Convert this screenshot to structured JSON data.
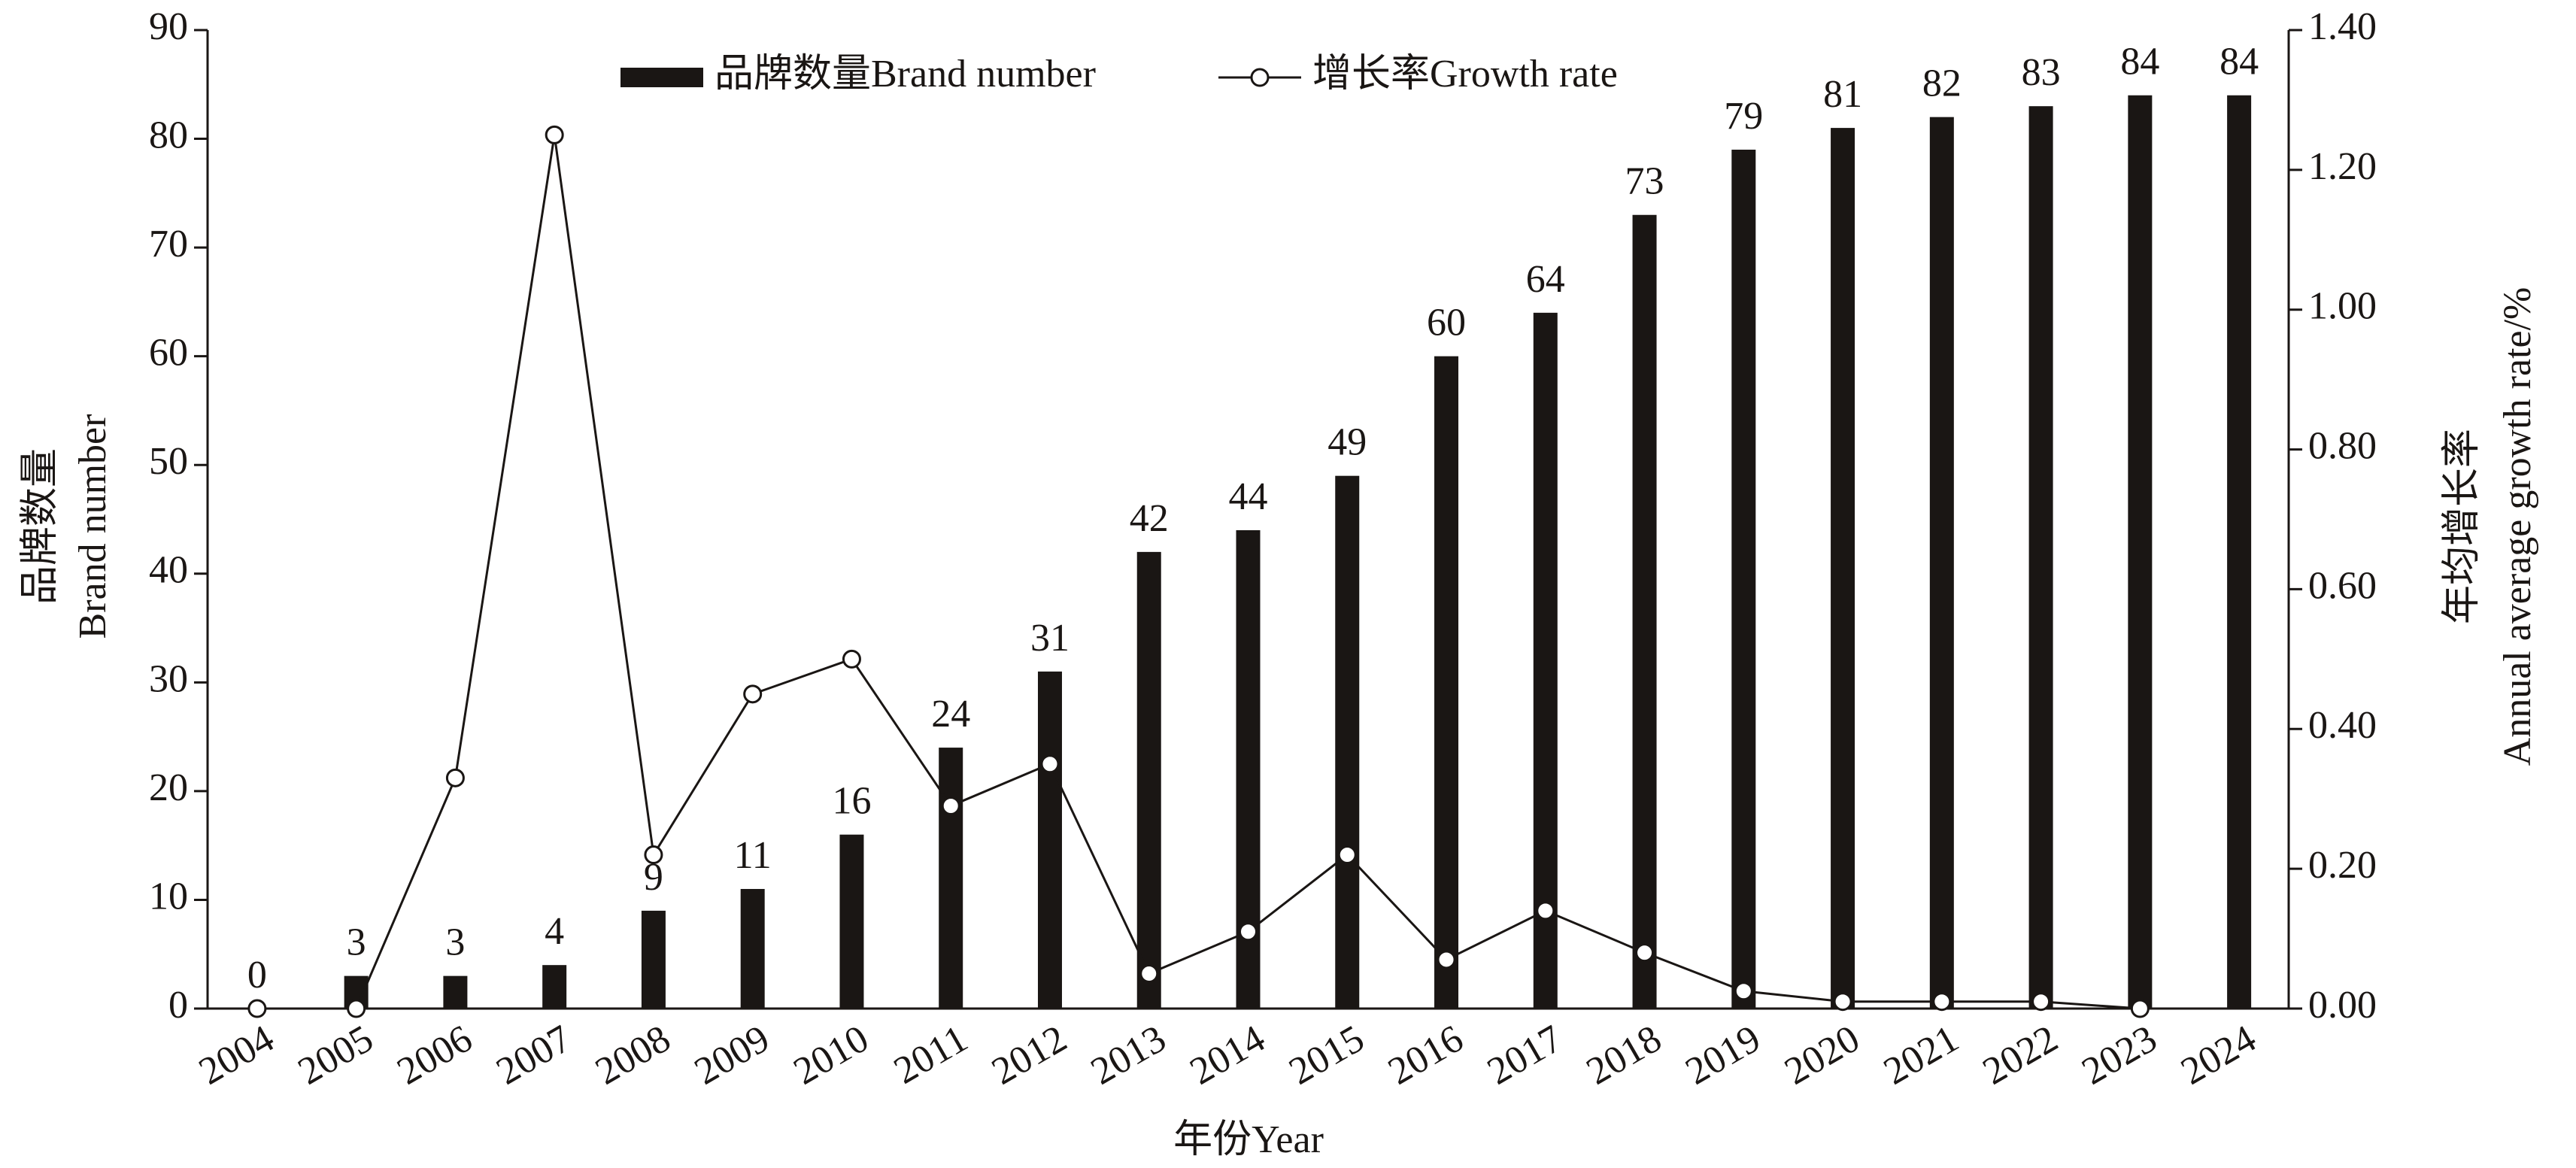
{
  "chart_data": {
    "type": "bar-line",
    "categories": [
      "2004",
      "2005",
      "2006",
      "2007",
      "2008",
      "2009",
      "2010",
      "2011",
      "2012",
      "2013",
      "2014",
      "2015",
      "2016",
      "2017",
      "2018",
      "2019",
      "2020",
      "2021",
      "2022",
      "2023",
      "2024"
    ],
    "series": [
      {
        "name": "品牌数量Brand number",
        "type": "bar",
        "color": "#1a1614",
        "values": [
          0,
          3,
          3,
          4,
          9,
          11,
          16,
          24,
          31,
          42,
          44,
          49,
          60,
          64,
          73,
          79,
          81,
          82,
          83,
          84,
          84
        ]
      },
      {
        "name": "增长率Growth rate",
        "type": "line",
        "axis": "y2",
        "color": "#1a1614",
        "values": [
          0,
          0,
          0.33,
          1.25,
          0.22,
          0.45,
          0.5,
          0.29,
          0.35,
          0.05,
          0.11,
          0.22,
          0.07,
          0.14,
          0.08,
          0.025,
          0.01,
          0.01,
          0.01,
          0,
          null
        ]
      }
    ],
    "ylim": [
      0,
      90
    ],
    "yticks": [
      0,
      10,
      20,
      30,
      40,
      50,
      60,
      70,
      80,
      90
    ],
    "y2lim": [
      0,
      1.4
    ],
    "y2ticks": [
      {
        "value": 0,
        "label": "0.00"
      },
      {
        "value": 0.2,
        "label": "0.20"
      },
      {
        "value": 0.4,
        "label": "0.40"
      },
      {
        "value": 0.6,
        "label": "0.60"
      },
      {
        "value": 0.8,
        "label": "0.80"
      },
      {
        "value": 1,
        "label": "1.00"
      },
      {
        "value": 1.2,
        "label": "1.20"
      },
      {
        "value": 1.4,
        "label": "1.40"
      }
    ],
    "xlabel": "年份Year",
    "ylabel": [
      "品牌数量",
      "Brand number"
    ],
    "y2label": [
      "年均增长率",
      "Annual average growth rate/%"
    ],
    "legend": "top"
  }
}
